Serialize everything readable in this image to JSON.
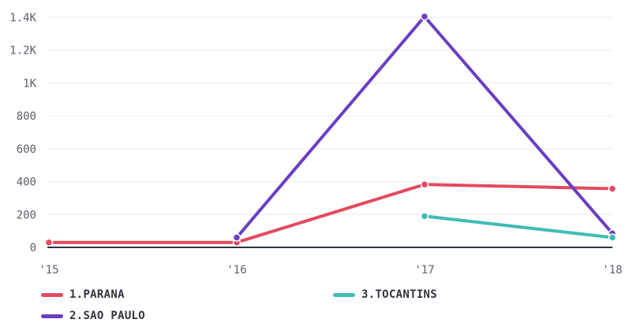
{
  "chart_data": {
    "type": "line",
    "categories": [
      "'15",
      "'16",
      "'17",
      "'18"
    ],
    "ylim": [
      0,
      1400
    ],
    "yticks": [
      0,
      200,
      400,
      600,
      800,
      "1K",
      "1.2K",
      "1.4K"
    ],
    "ytick_values": [
      0,
      200,
      400,
      600,
      800,
      1000,
      1200,
      1400
    ],
    "grid": true,
    "legend_position": "bottom",
    "series": [
      {
        "name": "1.PARANA",
        "color": "#e34a5f",
        "points": [
          [
            0,
            30
          ],
          [
            1,
            30
          ],
          [
            2,
            383
          ],
          [
            3,
            357
          ]
        ]
      },
      {
        "name": "2.SAO PAULO",
        "color": "#6a3fc2",
        "points": [
          [
            1,
            60
          ],
          [
            2,
            1405
          ],
          [
            3,
            85
          ]
        ]
      },
      {
        "name": "3.TOCANTINS",
        "color": "#3fbdb5",
        "points": [
          [
            2,
            190
          ],
          [
            3,
            60
          ]
        ]
      }
    ]
  }
}
